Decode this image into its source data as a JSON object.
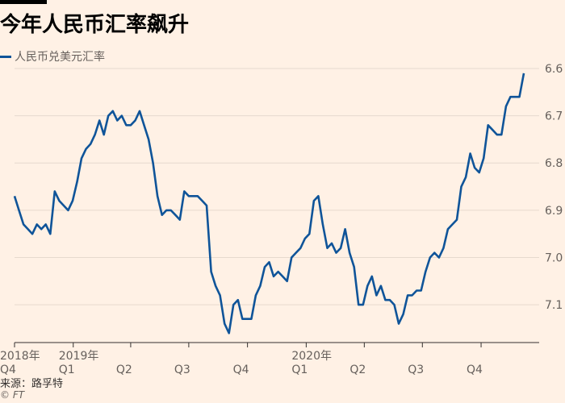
{
  "title": "今年人民币汇率飙升",
  "source": "来源：路孚特",
  "credit": "© FT",
  "colors": {
    "line": "#0f5499",
    "grid": "#e6d9ce",
    "background": "#fff1e5"
  },
  "chart_data": {
    "type": "line",
    "title": "今年人民币汇率飙升",
    "ylabel": "",
    "y_inverted": true,
    "ylim": [
      6.6,
      7.18
    ],
    "yticks": [
      6.6,
      6.7,
      6.8,
      6.9,
      7.0,
      7.1
    ],
    "ytick_labels": [
      "6.6",
      "6.7",
      "6.8",
      "6.9",
      "7.0",
      "7.1"
    ],
    "xlim": [
      "2018-10-01",
      "2020-12-31"
    ],
    "x_ticks": [
      {
        "date": "2018-10-01",
        "line1": "2018年",
        "line2": "Q4"
      },
      {
        "date": "2019-01-01",
        "line1": "2019年",
        "line2": "Q1"
      },
      {
        "date": "2019-04-01",
        "line1": "",
        "line2": "Q2"
      },
      {
        "date": "2019-07-01",
        "line1": "",
        "line2": "Q3"
      },
      {
        "date": "2019-10-01",
        "line1": "",
        "line2": "Q4"
      },
      {
        "date": "2020-01-01",
        "line1": "2020年",
        "line2": "Q1"
      },
      {
        "date": "2020-04-01",
        "line1": "",
        "line2": "Q2"
      },
      {
        "date": "2020-07-01",
        "line1": "",
        "line2": "Q3"
      },
      {
        "date": "2020-10-01",
        "line1": "",
        "line2": "Q4"
      }
    ],
    "grid": true,
    "legend": "top-left",
    "series": [
      {
        "name": "人民币兑美元汇率",
        "points": [
          [
            "2018-10-01",
            6.87
          ],
          [
            "2018-10-08",
            6.9
          ],
          [
            "2018-10-15",
            6.93
          ],
          [
            "2018-10-22",
            6.94
          ],
          [
            "2018-10-29",
            6.95
          ],
          [
            "2018-11-05",
            6.93
          ],
          [
            "2018-11-12",
            6.94
          ],
          [
            "2018-11-19",
            6.93
          ],
          [
            "2018-11-26",
            6.95
          ],
          [
            "2018-12-03",
            6.86
          ],
          [
            "2018-12-10",
            6.88
          ],
          [
            "2018-12-17",
            6.89
          ],
          [
            "2018-12-24",
            6.9
          ],
          [
            "2018-12-31",
            6.88
          ],
          [
            "2019-01-07",
            6.84
          ],
          [
            "2019-01-14",
            6.79
          ],
          [
            "2019-01-21",
            6.77
          ],
          [
            "2019-01-28",
            6.76
          ],
          [
            "2019-02-04",
            6.74
          ],
          [
            "2019-02-11",
            6.71
          ],
          [
            "2019-02-18",
            6.74
          ],
          [
            "2019-02-25",
            6.7
          ],
          [
            "2019-03-04",
            6.69
          ],
          [
            "2019-03-11",
            6.71
          ],
          [
            "2019-03-18",
            6.7
          ],
          [
            "2019-03-25",
            6.72
          ],
          [
            "2019-04-01",
            6.72
          ],
          [
            "2019-04-08",
            6.71
          ],
          [
            "2019-04-15",
            6.69
          ],
          [
            "2019-04-22",
            6.72
          ],
          [
            "2019-04-29",
            6.75
          ],
          [
            "2019-05-06",
            6.8
          ],
          [
            "2019-05-13",
            6.87
          ],
          [
            "2019-05-20",
            6.91
          ],
          [
            "2019-05-27",
            6.9
          ],
          [
            "2019-06-03",
            6.9
          ],
          [
            "2019-06-10",
            6.91
          ],
          [
            "2019-06-17",
            6.92
          ],
          [
            "2019-06-24",
            6.86
          ],
          [
            "2019-07-01",
            6.87
          ],
          [
            "2019-07-08",
            6.87
          ],
          [
            "2019-07-15",
            6.87
          ],
          [
            "2019-07-22",
            6.88
          ],
          [
            "2019-07-29",
            6.89
          ],
          [
            "2019-08-05",
            7.03
          ],
          [
            "2019-08-12",
            7.06
          ],
          [
            "2019-08-19",
            7.08
          ],
          [
            "2019-08-26",
            7.14
          ],
          [
            "2019-09-02",
            7.16
          ],
          [
            "2019-09-09",
            7.1
          ],
          [
            "2019-09-16",
            7.09
          ],
          [
            "2019-09-23",
            7.13
          ],
          [
            "2019-09-30",
            7.13
          ],
          [
            "2019-10-07",
            7.13
          ],
          [
            "2019-10-14",
            7.08
          ],
          [
            "2019-10-21",
            7.06
          ],
          [
            "2019-10-28",
            7.02
          ],
          [
            "2019-11-04",
            7.01
          ],
          [
            "2019-11-11",
            7.04
          ],
          [
            "2019-11-18",
            7.03
          ],
          [
            "2019-11-25",
            7.04
          ],
          [
            "2019-12-02",
            7.05
          ],
          [
            "2019-12-09",
            7.0
          ],
          [
            "2019-12-16",
            6.99
          ],
          [
            "2019-12-23",
            6.98
          ],
          [
            "2019-12-30",
            6.96
          ],
          [
            "2020-01-06",
            6.95
          ],
          [
            "2020-01-13",
            6.88
          ],
          [
            "2020-01-20",
            6.87
          ],
          [
            "2020-01-27",
            6.93
          ],
          [
            "2020-02-03",
            6.98
          ],
          [
            "2020-02-10",
            6.97
          ],
          [
            "2020-02-17",
            6.99
          ],
          [
            "2020-02-24",
            6.98
          ],
          [
            "2020-03-02",
            6.94
          ],
          [
            "2020-03-09",
            6.99
          ],
          [
            "2020-03-16",
            7.02
          ],
          [
            "2020-03-23",
            7.1
          ],
          [
            "2020-03-30",
            7.1
          ],
          [
            "2020-04-06",
            7.06
          ],
          [
            "2020-04-13",
            7.04
          ],
          [
            "2020-04-20",
            7.08
          ],
          [
            "2020-04-27",
            7.06
          ],
          [
            "2020-05-04",
            7.09
          ],
          [
            "2020-05-11",
            7.09
          ],
          [
            "2020-05-18",
            7.1
          ],
          [
            "2020-05-25",
            7.14
          ],
          [
            "2020-06-01",
            7.12
          ],
          [
            "2020-06-08",
            7.08
          ],
          [
            "2020-06-15",
            7.08
          ],
          [
            "2020-06-22",
            7.07
          ],
          [
            "2020-06-29",
            7.07
          ],
          [
            "2020-07-06",
            7.03
          ],
          [
            "2020-07-13",
            7.0
          ],
          [
            "2020-07-20",
            6.99
          ],
          [
            "2020-07-27",
            7.0
          ],
          [
            "2020-08-03",
            6.98
          ],
          [
            "2020-08-10",
            6.94
          ],
          [
            "2020-08-17",
            6.93
          ],
          [
            "2020-08-24",
            6.92
          ],
          [
            "2020-08-31",
            6.85
          ],
          [
            "2020-09-07",
            6.83
          ],
          [
            "2020-09-14",
            6.78
          ],
          [
            "2020-09-21",
            6.81
          ],
          [
            "2020-09-28",
            6.82
          ],
          [
            "2020-10-05",
            6.79
          ],
          [
            "2020-10-12",
            6.72
          ],
          [
            "2020-10-19",
            6.73
          ],
          [
            "2020-10-26",
            6.74
          ],
          [
            "2020-11-02",
            6.74
          ],
          [
            "2020-11-09",
            6.68
          ],
          [
            "2020-11-16",
            6.66
          ],
          [
            "2020-11-23",
            6.66
          ],
          [
            "2020-11-30",
            6.66
          ],
          [
            "2020-12-07",
            6.61
          ]
        ]
      }
    ]
  }
}
